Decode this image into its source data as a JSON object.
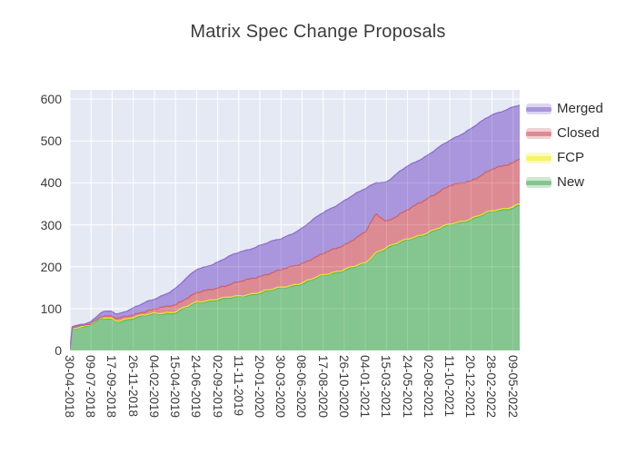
{
  "title": "Matrix Spec Change Proposals",
  "legend": {
    "items": [
      {
        "label": "Merged",
        "fill": "#a996dc",
        "line": "#8b6fd1"
      },
      {
        "label": "Closed",
        "fill": "#dd8b93",
        "line": "#d0606c"
      },
      {
        "label": "FCP",
        "fill": "#f6f462",
        "line": "#e8e530"
      },
      {
        "label": "New",
        "fill": "#85c58f",
        "line": "#57b06d"
      }
    ]
  },
  "chart_data": {
    "type": "area",
    "stacked": true,
    "title": "Matrix Spec Change Proposals",
    "plot_bg": "#e5e9f3",
    "grid_color": "#ffffff",
    "y_ticks": [
      0,
      100,
      200,
      300,
      400,
      500,
      600
    ],
    "y_range": [
      0,
      622
    ],
    "x_days_span": 1492,
    "x_tick_interval_days": 70,
    "x_tick_labels": [
      "30-04-2018",
      "09-07-2018",
      "17-09-2018",
      "26-11-2018",
      "04-02-2019",
      "15-04-2019",
      "24-06-2019",
      "02-09-2019",
      "11-11-2019",
      "20-01-2020",
      "30-03-2020",
      "08-06-2020",
      "17-08-2020",
      "26-10-2020",
      "04-01-2021",
      "15-03-2021",
      "24-05-2021",
      "02-08-2021",
      "11-10-2021",
      "20-12-2021",
      "28-02-2022",
      "09-05-2022"
    ],
    "series_order_bottom_to_top": [
      "New",
      "FCP",
      "Closed",
      "Merged"
    ],
    "series_styles": {
      "new": {
        "name": "New",
        "fill": "#85c58f",
        "line": "#57b06d"
      },
      "fcp": {
        "name": "FCP",
        "fill": "#f6f462",
        "line": "#e8e530"
      },
      "closed": {
        "name": "Closed",
        "fill": "#dd8b93",
        "line": "#d0606c"
      },
      "merged": {
        "name": "Merged",
        "fill": "#a996dc",
        "line": "#8b6fd1"
      }
    },
    "points": [
      {
        "date": "30-04-2018",
        "day": 0,
        "new": 2,
        "fcp": 0,
        "closed": 0,
        "merged": 1
      },
      {
        "date": "07-05-2018",
        "day": 7,
        "new": 50,
        "fcp": 1,
        "closed": 2,
        "merged": 3
      },
      {
        "date": "09-07-2018",
        "day": 70,
        "new": 63,
        "fcp": 1,
        "closed": 2,
        "merged": 5
      },
      {
        "date": "13-08-2018",
        "day": 105,
        "new": 76,
        "fcp": 2,
        "closed": 4,
        "merged": 8
      },
      {
        "date": "17-09-2018",
        "day": 140,
        "new": 73,
        "fcp": 2,
        "closed": 5,
        "merged": 12
      },
      {
        "date": "01-10-2018",
        "day": 154,
        "new": 68,
        "fcp": 2,
        "closed": 5,
        "merged": 10
      },
      {
        "date": "26-11-2018",
        "day": 210,
        "new": 78,
        "fcp": 2,
        "closed": 7,
        "merged": 17
      },
      {
        "date": "04-02-2019",
        "day": 280,
        "new": 86,
        "fcp": 2,
        "closed": 9,
        "merged": 23
      },
      {
        "date": "15-04-2019",
        "day": 350,
        "new": 91,
        "fcp": 2,
        "closed": 18,
        "merged": 39
      },
      {
        "date": "24-06-2019",
        "day": 420,
        "new": 113,
        "fcp": 2,
        "closed": 21,
        "merged": 55
      },
      {
        "date": "02-09-2019",
        "day": 490,
        "new": 122,
        "fcp": 2,
        "closed": 27,
        "merged": 62
      },
      {
        "date": "11-11-2019",
        "day": 560,
        "new": 127,
        "fcp": 2,
        "closed": 33,
        "merged": 70
      },
      {
        "date": "20-01-2020",
        "day": 630,
        "new": 138,
        "fcp": 2,
        "closed": 38,
        "merged": 75
      },
      {
        "date": "30-03-2020",
        "day": 700,
        "new": 148,
        "fcp": 2,
        "closed": 41,
        "merged": 73
      },
      {
        "date": "08-06-2020",
        "day": 770,
        "new": 160,
        "fcp": 2,
        "closed": 47,
        "merged": 85
      },
      {
        "date": "17-08-2020",
        "day": 840,
        "new": 178,
        "fcp": 2,
        "closed": 50,
        "merged": 97
      },
      {
        "date": "26-10-2020",
        "day": 910,
        "new": 192,
        "fcp": 2,
        "closed": 59,
        "merged": 107
      },
      {
        "date": "04-01-2021",
        "day": 980,
        "new": 206,
        "fcp": 2,
        "closed": 73,
        "merged": 103
      },
      {
        "date": "08-02-2021",
        "day": 1015,
        "new": 232,
        "fcp": 2,
        "closed": 92,
        "merged": 76
      },
      {
        "date": "15-03-2021",
        "day": 1050,
        "new": 245,
        "fcp": 2,
        "closed": 62,
        "merged": 95
      },
      {
        "date": "24-05-2021",
        "day": 1120,
        "new": 263,
        "fcp": 2,
        "closed": 69,
        "merged": 104
      },
      {
        "date": "02-08-2021",
        "day": 1190,
        "new": 281,
        "fcp": 2,
        "closed": 83,
        "merged": 104
      },
      {
        "date": "11-10-2021",
        "day": 1260,
        "new": 299,
        "fcp": 2,
        "closed": 91,
        "merged": 107
      },
      {
        "date": "20-12-2021",
        "day": 1330,
        "new": 313,
        "fcp": 2,
        "closed": 91,
        "merged": 126
      },
      {
        "date": "28-02-2022",
        "day": 1400,
        "new": 331,
        "fcp": 2,
        "closed": 98,
        "merged": 129
      },
      {
        "date": "09-05-2022",
        "day": 1470,
        "new": 341,
        "fcp": 3,
        "closed": 105,
        "merged": 135
      },
      {
        "date": "31-05-2022",
        "day": 1492,
        "new": 347,
        "fcp": 3,
        "closed": 110,
        "merged": 126
      }
    ]
  }
}
